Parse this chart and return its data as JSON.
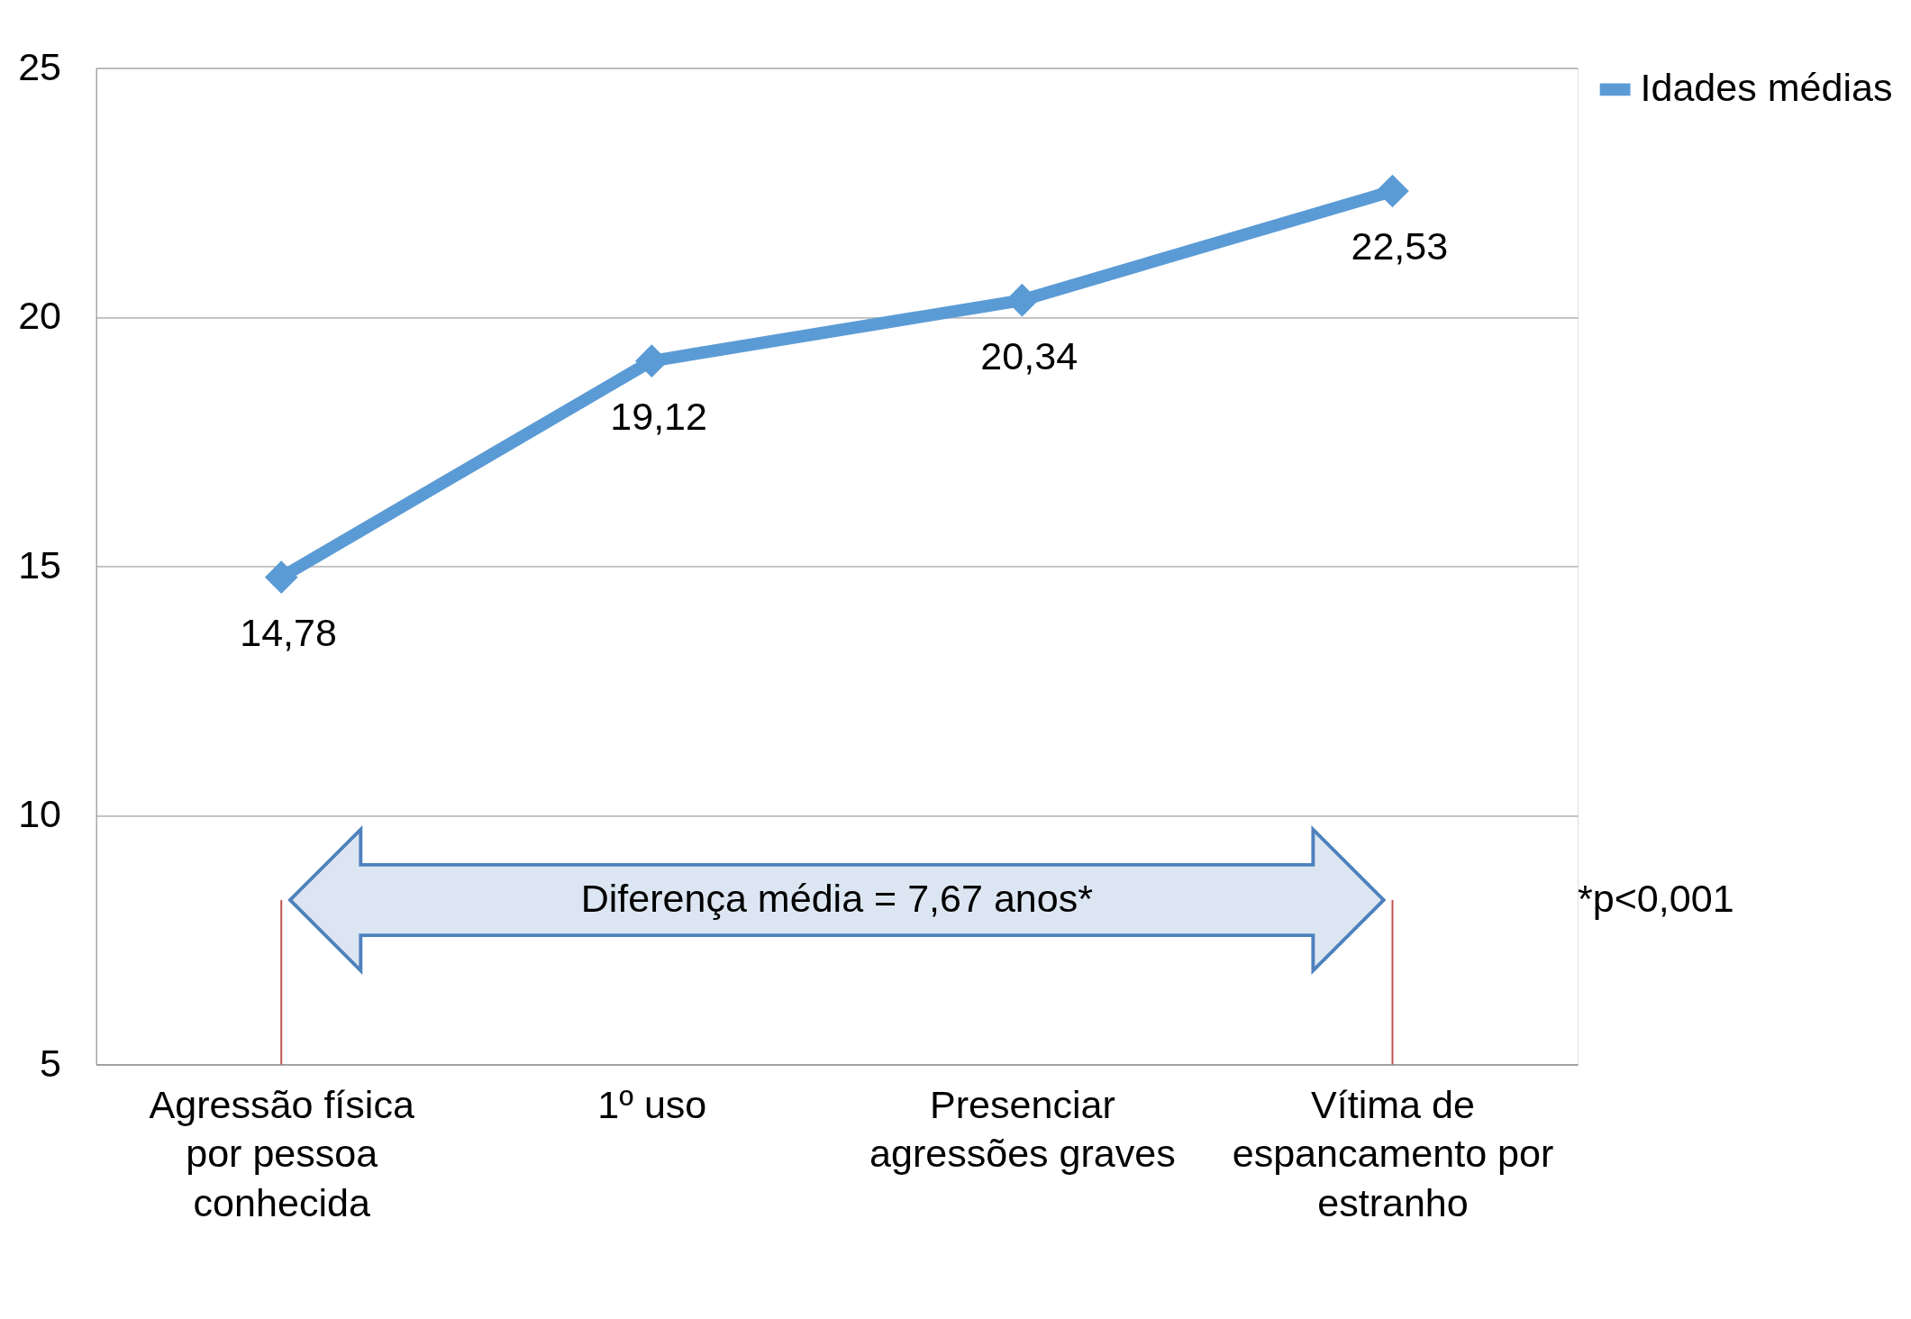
{
  "chart_data": {
    "type": "line",
    "categories": [
      "Agressão física por pessoa conhecida",
      "1º uso",
      "Presenciar agressões graves",
      "Vítima de espancamento por estranho"
    ],
    "series": [
      {
        "name": "Idades médias",
        "color": "#5b9bd5",
        "values": [
          14.78,
          19.12,
          20.34,
          22.53
        ],
        "value_labels": [
          "14,78",
          "19,12",
          "20,34",
          "22,53"
        ]
      }
    ],
    "ylim": [
      5,
      25
    ],
    "yticks": [
      5,
      10,
      15,
      20,
      25
    ],
    "grid": "y",
    "legend": "right",
    "marker": "diamond",
    "annotations": [
      "Diferença média = 7,67 anos*",
      "*p<0,001"
    ]
  }
}
